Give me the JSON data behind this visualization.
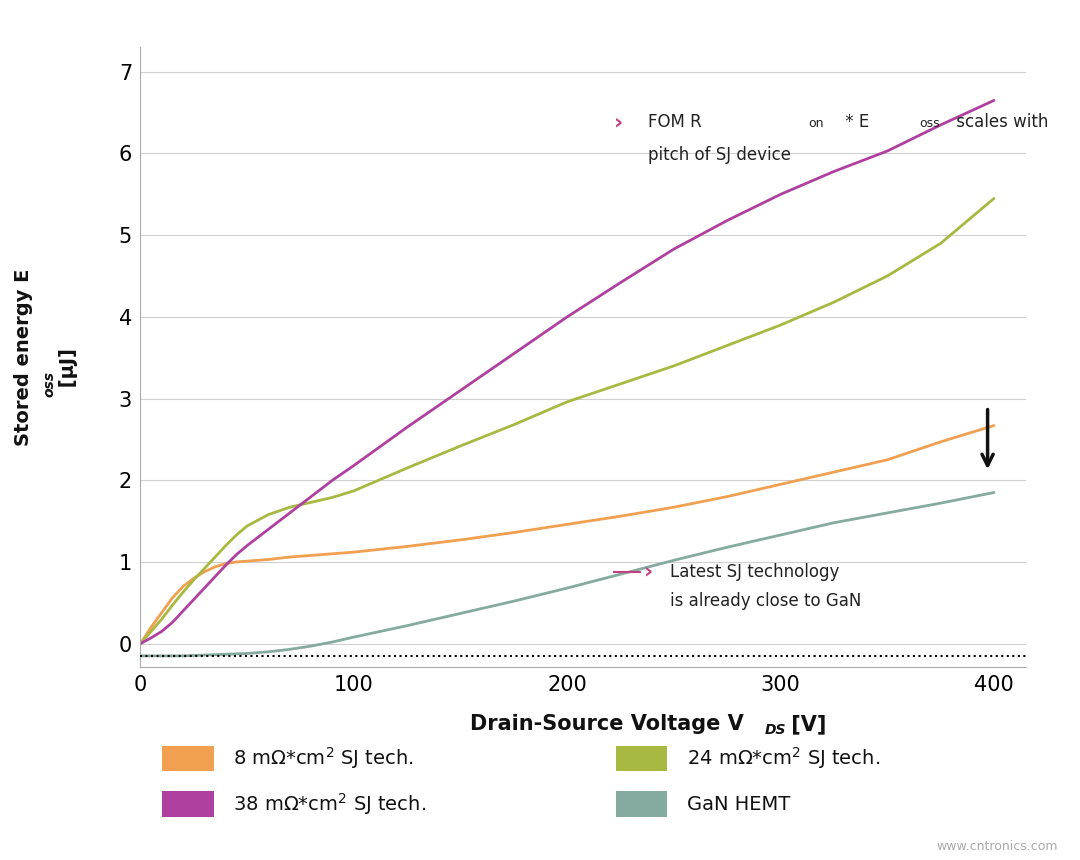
{
  "xlim": [
    0,
    415
  ],
  "ylim": [
    -0.28,
    7.3
  ],
  "xticks": [
    0,
    100,
    200,
    300,
    400
  ],
  "yticks": [
    0,
    1,
    2,
    3,
    4,
    5,
    6,
    7
  ],
  "background_color": "#ffffff",
  "grid_color": "#d0d0d0",
  "dotted_line_y": -0.15,
  "series": [
    {
      "label": "8 mΩ*cm² SJ tech.",
      "color": "#f0a050",
      "x": [
        0,
        5,
        10,
        15,
        20,
        25,
        30,
        35,
        40,
        45,
        50,
        60,
        70,
        80,
        90,
        100,
        125,
        150,
        175,
        200,
        225,
        250,
        275,
        300,
        325,
        350,
        375,
        400
      ],
      "y": [
        0,
        0.2,
        0.38,
        0.56,
        0.7,
        0.8,
        0.88,
        0.94,
        0.98,
        1.0,
        1.01,
        1.03,
        1.06,
        1.08,
        1.1,
        1.12,
        1.19,
        1.27,
        1.36,
        1.46,
        1.56,
        1.67,
        1.8,
        1.95,
        2.1,
        2.25,
        2.47,
        2.67
      ]
    },
    {
      "label": "24 mΩ*cm² SJ tech.",
      "color": "#a8b840",
      "x": [
        0,
        5,
        10,
        15,
        20,
        25,
        30,
        35,
        40,
        45,
        50,
        60,
        70,
        80,
        90,
        100,
        125,
        150,
        175,
        200,
        225,
        250,
        275,
        300,
        325,
        350,
        375,
        400
      ],
      "y": [
        0,
        0.15,
        0.3,
        0.47,
        0.63,
        0.78,
        0.92,
        1.06,
        1.2,
        1.33,
        1.44,
        1.58,
        1.67,
        1.73,
        1.79,
        1.87,
        2.15,
        2.42,
        2.68,
        2.96,
        3.18,
        3.4,
        3.65,
        3.9,
        4.18,
        4.5,
        4.9,
        5.45
      ]
    },
    {
      "label": "38 mΩ*cm² SJ tech.",
      "color": "#b040a0",
      "x": [
        0,
        5,
        10,
        15,
        20,
        25,
        30,
        35,
        40,
        45,
        50,
        60,
        70,
        80,
        90,
        100,
        125,
        150,
        175,
        200,
        225,
        250,
        275,
        300,
        325,
        350,
        375,
        400
      ],
      "y": [
        0,
        0.07,
        0.15,
        0.26,
        0.4,
        0.54,
        0.68,
        0.82,
        0.96,
        1.09,
        1.2,
        1.4,
        1.6,
        1.8,
        2.0,
        2.18,
        2.65,
        3.1,
        3.55,
        4.0,
        4.42,
        4.83,
        5.18,
        5.5,
        5.78,
        6.03,
        6.35,
        6.65
      ]
    },
    {
      "label": "GaN HEMT",
      "color": "#85aaa0",
      "x": [
        0,
        10,
        20,
        30,
        40,
        50,
        60,
        70,
        80,
        90,
        100,
        125,
        150,
        175,
        200,
        225,
        250,
        275,
        300,
        325,
        350,
        375,
        400
      ],
      "y": [
        -0.15,
        -0.15,
        -0.15,
        -0.14,
        -0.13,
        -0.12,
        -0.1,
        -0.07,
        -0.03,
        0.02,
        0.08,
        0.22,
        0.37,
        0.52,
        0.68,
        0.85,
        1.02,
        1.18,
        1.33,
        1.48,
        1.6,
        1.72,
        1.85
      ]
    }
  ],
  "legend_colors": [
    "#f0a050",
    "#a8b840",
    "#b040a0",
    "#85aaa0"
  ],
  "legend_labels": [
    "8 mΩ*cm² SJ tech.",
    "24 mΩ*cm² SJ tech.",
    "38 mΩ*cm² SJ tech.",
    "GaN HEMT"
  ],
  "annotation_marker_color": "#c04080",
  "arrow_color": "#111111",
  "watermark": "www.cntronics.com",
  "watermark_color": "#aaaaaa"
}
